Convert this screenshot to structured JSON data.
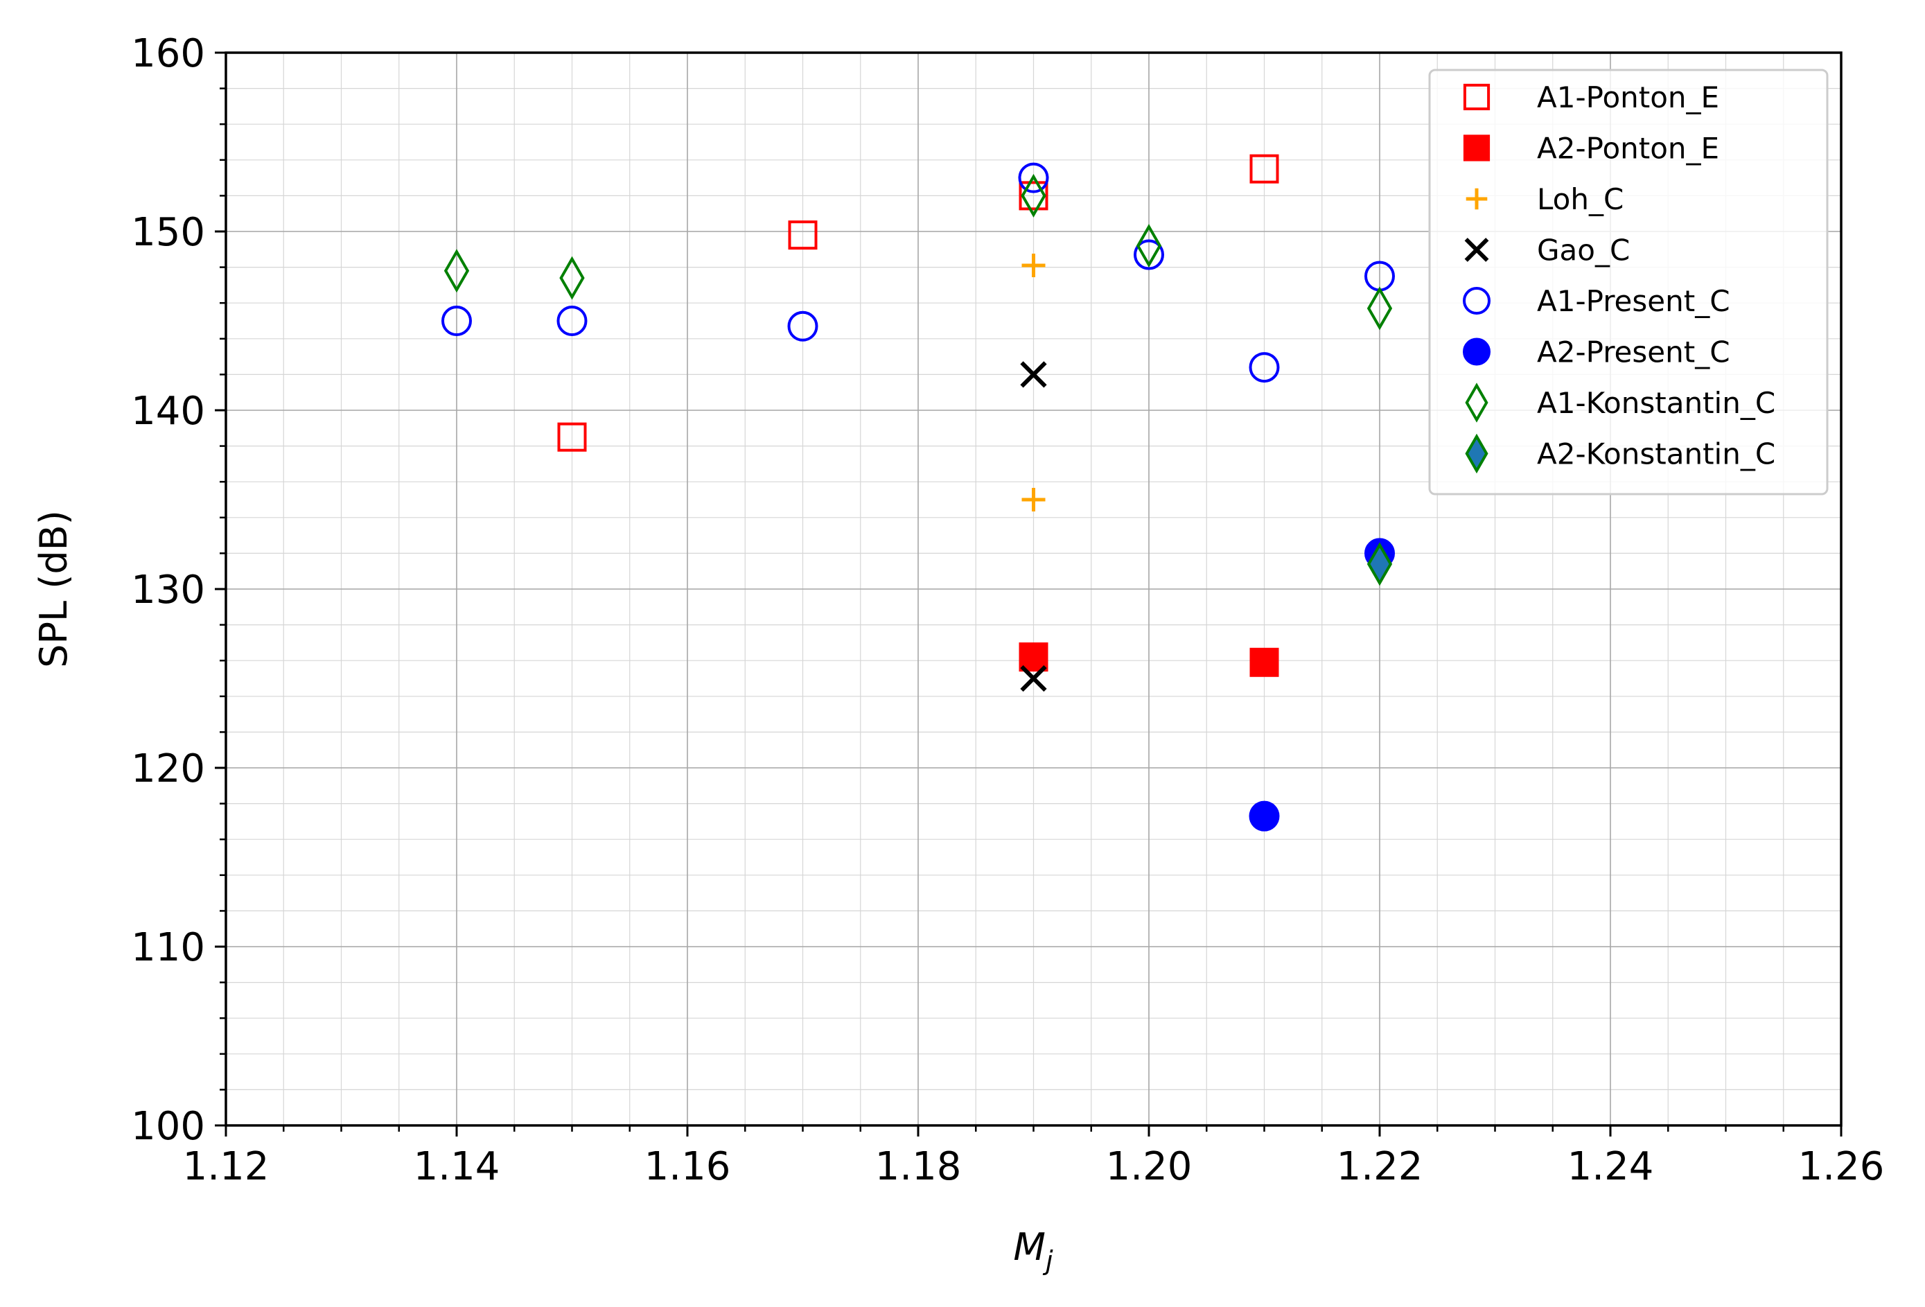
{
  "chart_data": {
    "type": "scatter",
    "xlabel": "M",
    "xlabel_sub": "j",
    "ylabel": "SPL (dB)",
    "xlim": [
      1.12,
      1.26
    ],
    "ylim": [
      100,
      160
    ],
    "xticks": [
      "1.12",
      "1.14",
      "1.16",
      "1.18",
      "1.20",
      "1.22",
      "1.24",
      "1.26"
    ],
    "yticks": [
      "100",
      "110",
      "120",
      "130",
      "140",
      "150",
      "160"
    ],
    "grid": true,
    "minor_grid": true,
    "legend_position": "top-right",
    "series": [
      {
        "name": "A1-Ponton_E",
        "marker": "square-open",
        "color": "#ff0000",
        "points": [
          [
            1.15,
            138.5
          ],
          [
            1.17,
            149.8
          ],
          [
            1.19,
            152.0
          ],
          [
            1.21,
            153.5
          ]
        ]
      },
      {
        "name": "A2-Ponton_E",
        "marker": "square-filled",
        "color": "#ff0000",
        "points": [
          [
            1.19,
            126.2
          ],
          [
            1.21,
            125.9
          ]
        ]
      },
      {
        "name": "Loh_C",
        "marker": "plus",
        "color": "#ffa500",
        "points": [
          [
            1.19,
            148.1
          ],
          [
            1.19,
            135.0
          ]
        ]
      },
      {
        "name": "Gao_C",
        "marker": "x",
        "color": "#000000",
        "points": [
          [
            1.19,
            142.0
          ],
          [
            1.19,
            125.0
          ]
        ]
      },
      {
        "name": "A1-Present_C",
        "marker": "circle-open",
        "color": "#0000ff",
        "points": [
          [
            1.14,
            145.0
          ],
          [
            1.15,
            145.0
          ],
          [
            1.17,
            144.7
          ],
          [
            1.19,
            153.0
          ],
          [
            1.2,
            148.7
          ],
          [
            1.21,
            142.4
          ],
          [
            1.22,
            147.5
          ]
        ]
      },
      {
        "name": "A2-Present_C",
        "marker": "circle-filled",
        "color": "#0000ff",
        "points": [
          [
            1.21,
            117.3
          ],
          [
            1.22,
            132.0
          ]
        ]
      },
      {
        "name": "A1-Konstantin_C",
        "marker": "diamond-open",
        "color": "#008000",
        "points": [
          [
            1.14,
            147.8
          ],
          [
            1.15,
            147.4
          ],
          [
            1.19,
            152.0
          ],
          [
            1.2,
            149.2
          ],
          [
            1.22,
            145.7
          ]
        ]
      },
      {
        "name": "A2-Konstantin_C",
        "marker": "diamond-filled",
        "color": "#008000",
        "fill": "#1f77b4",
        "points": [
          [
            1.22,
            131.4
          ]
        ]
      }
    ]
  }
}
